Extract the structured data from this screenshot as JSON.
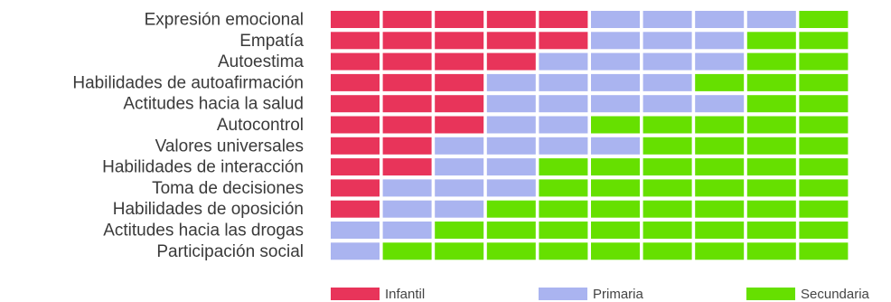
{
  "chart_data": {
    "type": "heatmap",
    "title": "",
    "units_per_row": 10,
    "categories": [
      "Expresión emocional",
      "Empatía",
      "Autoestima",
      "Habilidades de autoafirmación",
      "Actitudes hacia la salud",
      "Autocontrol",
      "Valores universales",
      "Habilidades de interacción",
      "Toma de decisiones",
      "Habilidades de oposición",
      "Actitudes hacia las drogas",
      "Participación social"
    ],
    "series": [
      {
        "name": "Infantil",
        "color": "#e8345a",
        "values": [
          5,
          5,
          4,
          3,
          3,
          3,
          2,
          2,
          1,
          1,
          0,
          0
        ]
      },
      {
        "name": "Primaria",
        "color": "#aab4f0",
        "values": [
          4,
          3,
          4,
          4,
          5,
          2,
          4,
          2,
          3,
          2,
          2,
          1
        ]
      },
      {
        "name": "Secundaria",
        "color": "#66e000",
        "values": [
          1,
          2,
          2,
          3,
          2,
          5,
          4,
          6,
          6,
          7,
          8,
          9
        ]
      }
    ],
    "legend_position": "bottom"
  }
}
